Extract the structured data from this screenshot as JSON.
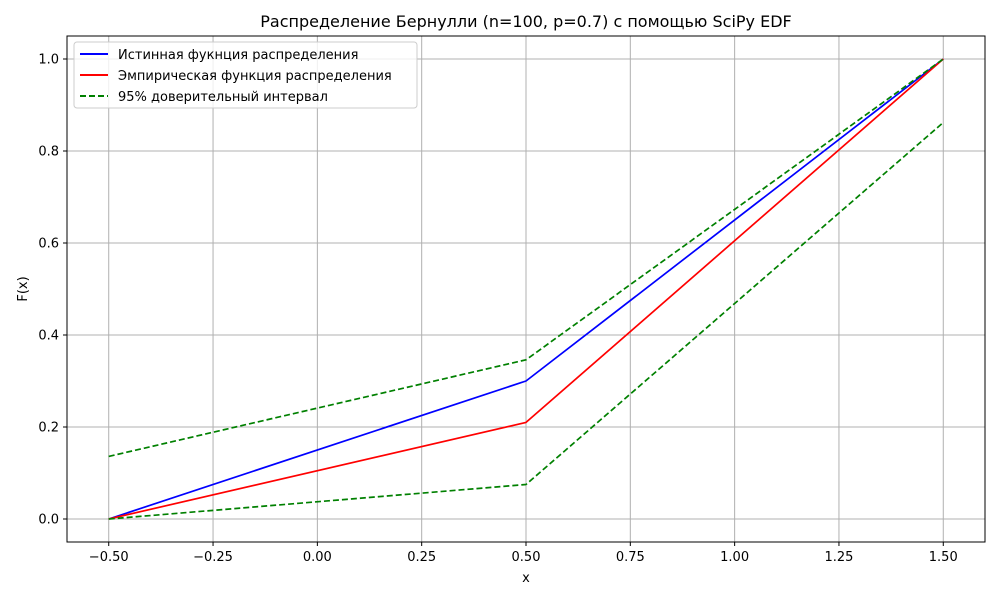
{
  "chart_data": {
    "type": "line",
    "title": "Распределение Бернулли (n=100, p=0.7) с помощью SciPy EDF",
    "xlabel": "x",
    "ylabel": "F(x)",
    "xlim": [
      -0.6,
      1.6
    ],
    "ylim": [
      -0.05,
      1.05
    ],
    "grid": true,
    "legend_position": "top-left",
    "x_ticks": [
      -0.5,
      -0.25,
      0.0,
      0.25,
      0.5,
      0.75,
      1.0,
      1.25,
      1.5
    ],
    "x_tick_labels": [
      "−0.50",
      "−0.25",
      "0.00",
      "0.25",
      "0.50",
      "0.75",
      "1.00",
      "1.25",
      "1.50"
    ],
    "y_ticks": [
      0.0,
      0.2,
      0.4,
      0.6,
      0.8,
      1.0
    ],
    "y_tick_labels": [
      "0.0",
      "0.2",
      "0.4",
      "0.6",
      "0.8",
      "1.0"
    ],
    "series": [
      {
        "name": "Истинная фукнция распределения",
        "color": "#0000ff",
        "style": "solid",
        "x": [
          -0.5,
          0.5,
          1.5
        ],
        "y": [
          0.0,
          0.3,
          1.0
        ]
      },
      {
        "name": "Эмпирическая функция распределения",
        "color": "#ff0000",
        "style": "solid",
        "x": [
          -0.5,
          0.5,
          1.5
        ],
        "y": [
          0.0,
          0.21,
          1.0
        ]
      },
      {
        "name": "95% доверительный интервал",
        "color": "#008000",
        "style": "dashed",
        "x": [
          -0.5,
          0.5,
          1.5
        ],
        "y": [
          0.0,
          0.075,
          0.862
        ]
      },
      {
        "name": "",
        "color": "#008000",
        "style": "dashed",
        "x": [
          -0.5,
          0.5,
          1.5
        ],
        "y": [
          0.136,
          0.346,
          1.0
        ]
      }
    ]
  }
}
